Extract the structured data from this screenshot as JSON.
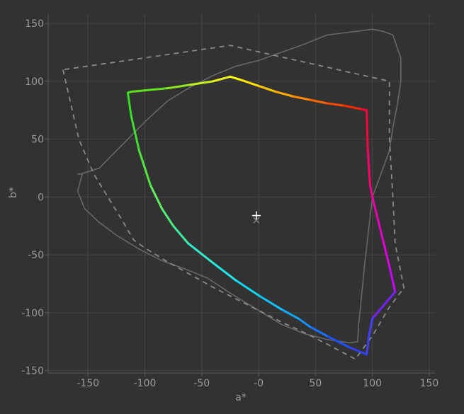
{
  "chart_data": {
    "type": "line",
    "title": "",
    "xlabel": "a*",
    "ylabel": "b*",
    "xlim": [
      -185,
      155
    ],
    "ylim": [
      -152,
      158
    ],
    "grid": true,
    "x_ticks": [
      -150,
      -100,
      -50,
      0,
      50,
      100,
      150
    ],
    "x_tick_labels": [
      "-150",
      "-100",
      "-50",
      "-0",
      "50",
      "100",
      "150"
    ],
    "y_ticks": [
      150,
      100,
      50,
      0,
      -50,
      -100,
      -150
    ],
    "y_tick_labels": [
      "150",
      "100",
      "50",
      "0",
      "-50",
      "-100",
      "-150"
    ],
    "colors": {
      "background": "#323232",
      "grid": "#464646",
      "axis": "#5a5a5a",
      "text": "#9a9a9a",
      "reference_solid": "#6a6a6a",
      "reference_dashed": "#8a8a8a",
      "marker": "#ffffff"
    },
    "series": [
      {
        "style": "solid-gray",
        "x": [
          -155,
          -159,
          -153,
          -140,
          -125,
          -105,
          -85,
          -65,
          -45,
          -25,
          0,
          20,
          40,
          60,
          80,
          87,
          88,
          93,
          100,
          115,
          118,
          122,
          125,
          125,
          118,
          110,
          100,
          85,
          60,
          40,
          20,
          0,
          -20,
          -40,
          -60,
          -80,
          -100,
          -120,
          -140,
          -156,
          -159,
          -155
        ],
        "y": [
          20,
          5,
          -10,
          -22,
          -33,
          -45,
          -55,
          -62,
          -70,
          -83,
          -98,
          -110,
          -118,
          -123,
          -126,
          -125,
          -110,
          -60,
          0,
          40,
          60,
          80,
          100,
          120,
          140,
          143,
          145,
          143,
          140,
          132,
          125,
          118,
          113,
          105,
          95,
          83,
          65,
          45,
          25,
          20,
          20,
          20
        ]
      },
      {
        "style": "dashed-gray",
        "x": [
          -172,
          -158,
          -145,
          -120,
          -110,
          -100,
          -80,
          -60,
          -40,
          -20,
          0,
          20,
          40,
          60,
          85,
          100,
          115,
          125,
          128,
          120,
          118,
          115,
          115,
          -25,
          -172
        ],
        "y": [
          110,
          50,
          20,
          -20,
          -37,
          -44,
          -56,
          -67,
          -78,
          -88,
          -98,
          -108,
          -117,
          -127,
          -140,
          -120,
          -95,
          -82,
          -80,
          -40,
          0,
          50,
          100,
          131,
          110
        ]
      },
      {
        "style": "spectral",
        "x": [
          -25,
          -15,
          0,
          15,
          30,
          45,
          60,
          75,
          90,
          95,
          96,
          98,
          100,
          105,
          110,
          115,
          120,
          100,
          97,
          95,
          80,
          60,
          45,
          35,
          20,
          0,
          -20,
          -40,
          -62,
          -75,
          -85,
          -95,
          -105,
          -112,
          -115,
          -112,
          -80,
          -60,
          -40,
          -25
        ],
        "y": [
          104,
          101,
          96,
          91,
          87,
          84,
          81,
          79,
          76,
          75,
          40,
          10,
          0,
          -20,
          -40,
          -60,
          -82,
          -105,
          -120,
          -136,
          -130,
          -120,
          -112,
          -105,
          -97,
          -85,
          -72,
          -57,
          -40,
          -25,
          -10,
          10,
          40,
          70,
          90,
          91,
          94,
          97,
          100,
          104
        ],
        "segment_colors": [
          "#ffff00",
          "#ffe400",
          "#ffc800",
          "#ffaa00",
          "#ff8a00",
          "#ff6a00",
          "#ff4a00",
          "#ff2a00",
          "#ff0030",
          "#ff0040",
          "#ff0066",
          "#f30088",
          "#ec00a8",
          "#e400c8",
          "#e000e0",
          "#cc00ff",
          "#7a20ff",
          "#4040ff",
          "#4040ff",
          "#3040f0",
          "#2050ff",
          "#1a70ff",
          "#1690ff",
          "#12a8ff",
          "#10c0ff",
          "#10d8f0",
          "#20e8e8",
          "#30f0d0",
          "#40f0a0",
          "#50f080",
          "#60f060",
          "#50e840",
          "#40e030",
          "#30e020",
          "#40e020",
          "#60e020",
          "#90e820",
          "#c0f020",
          "#eef020"
        ]
      }
    ],
    "markers": [
      {
        "kind": "plus",
        "x": -2,
        "y": -16
      },
      {
        "kind": "x",
        "x": -2,
        "y": -20
      }
    ]
  }
}
